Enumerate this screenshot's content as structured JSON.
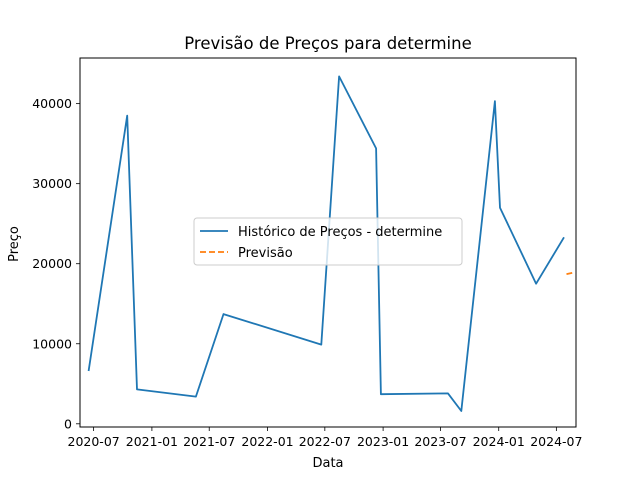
{
  "chart_data": {
    "type": "line",
    "title": "Previsão de Preços para determine",
    "xlabel": "Data",
    "ylabel": "Preço",
    "x_ticks": [
      "2020-07",
      "2021-01",
      "2021-07",
      "2022-01",
      "2022-07",
      "2023-01",
      "2023-07",
      "2024-01",
      "2024-07"
    ],
    "y_ticks": [
      "0",
      "10000",
      "20000",
      "30000",
      "40000"
    ],
    "ylim": [
      -400,
      45700
    ],
    "xlim": [
      "2020-05-19",
      "2024-09-01"
    ],
    "grid": false,
    "legend_position": "center",
    "series": [
      {
        "name": "Histórico de Preços - determine",
        "color": "#1f77b4",
        "style": "solid",
        "points": [
          {
            "x": "2020-06-15",
            "y": 6600
          },
          {
            "x": "2020-10-15",
            "y": 38500
          },
          {
            "x": "2020-11-15",
            "y": 4300
          },
          {
            "x": "2021-05-20",
            "y": 3400
          },
          {
            "x": "2021-08-15",
            "y": 13700
          },
          {
            "x": "2022-06-20",
            "y": 9900
          },
          {
            "x": "2022-08-15",
            "y": 43400
          },
          {
            "x": "2022-12-10",
            "y": 34400
          },
          {
            "x": "2022-12-25",
            "y": 3700
          },
          {
            "x": "2023-07-25",
            "y": 3800
          },
          {
            "x": "2023-09-05",
            "y": 1600
          },
          {
            "x": "2023-12-20",
            "y": 40300
          },
          {
            "x": "2024-01-05",
            "y": 27000
          },
          {
            "x": "2024-04-28",
            "y": 17500
          },
          {
            "x": "2024-07-25",
            "y": 23300
          }
        ]
      },
      {
        "name": "Previsão",
        "color": "#ff7f0e",
        "style": "dashed",
        "points": [
          {
            "x": "2024-08-02",
            "y": 18700
          },
          {
            "x": "2024-08-20",
            "y": 18850
          }
        ]
      }
    ]
  }
}
